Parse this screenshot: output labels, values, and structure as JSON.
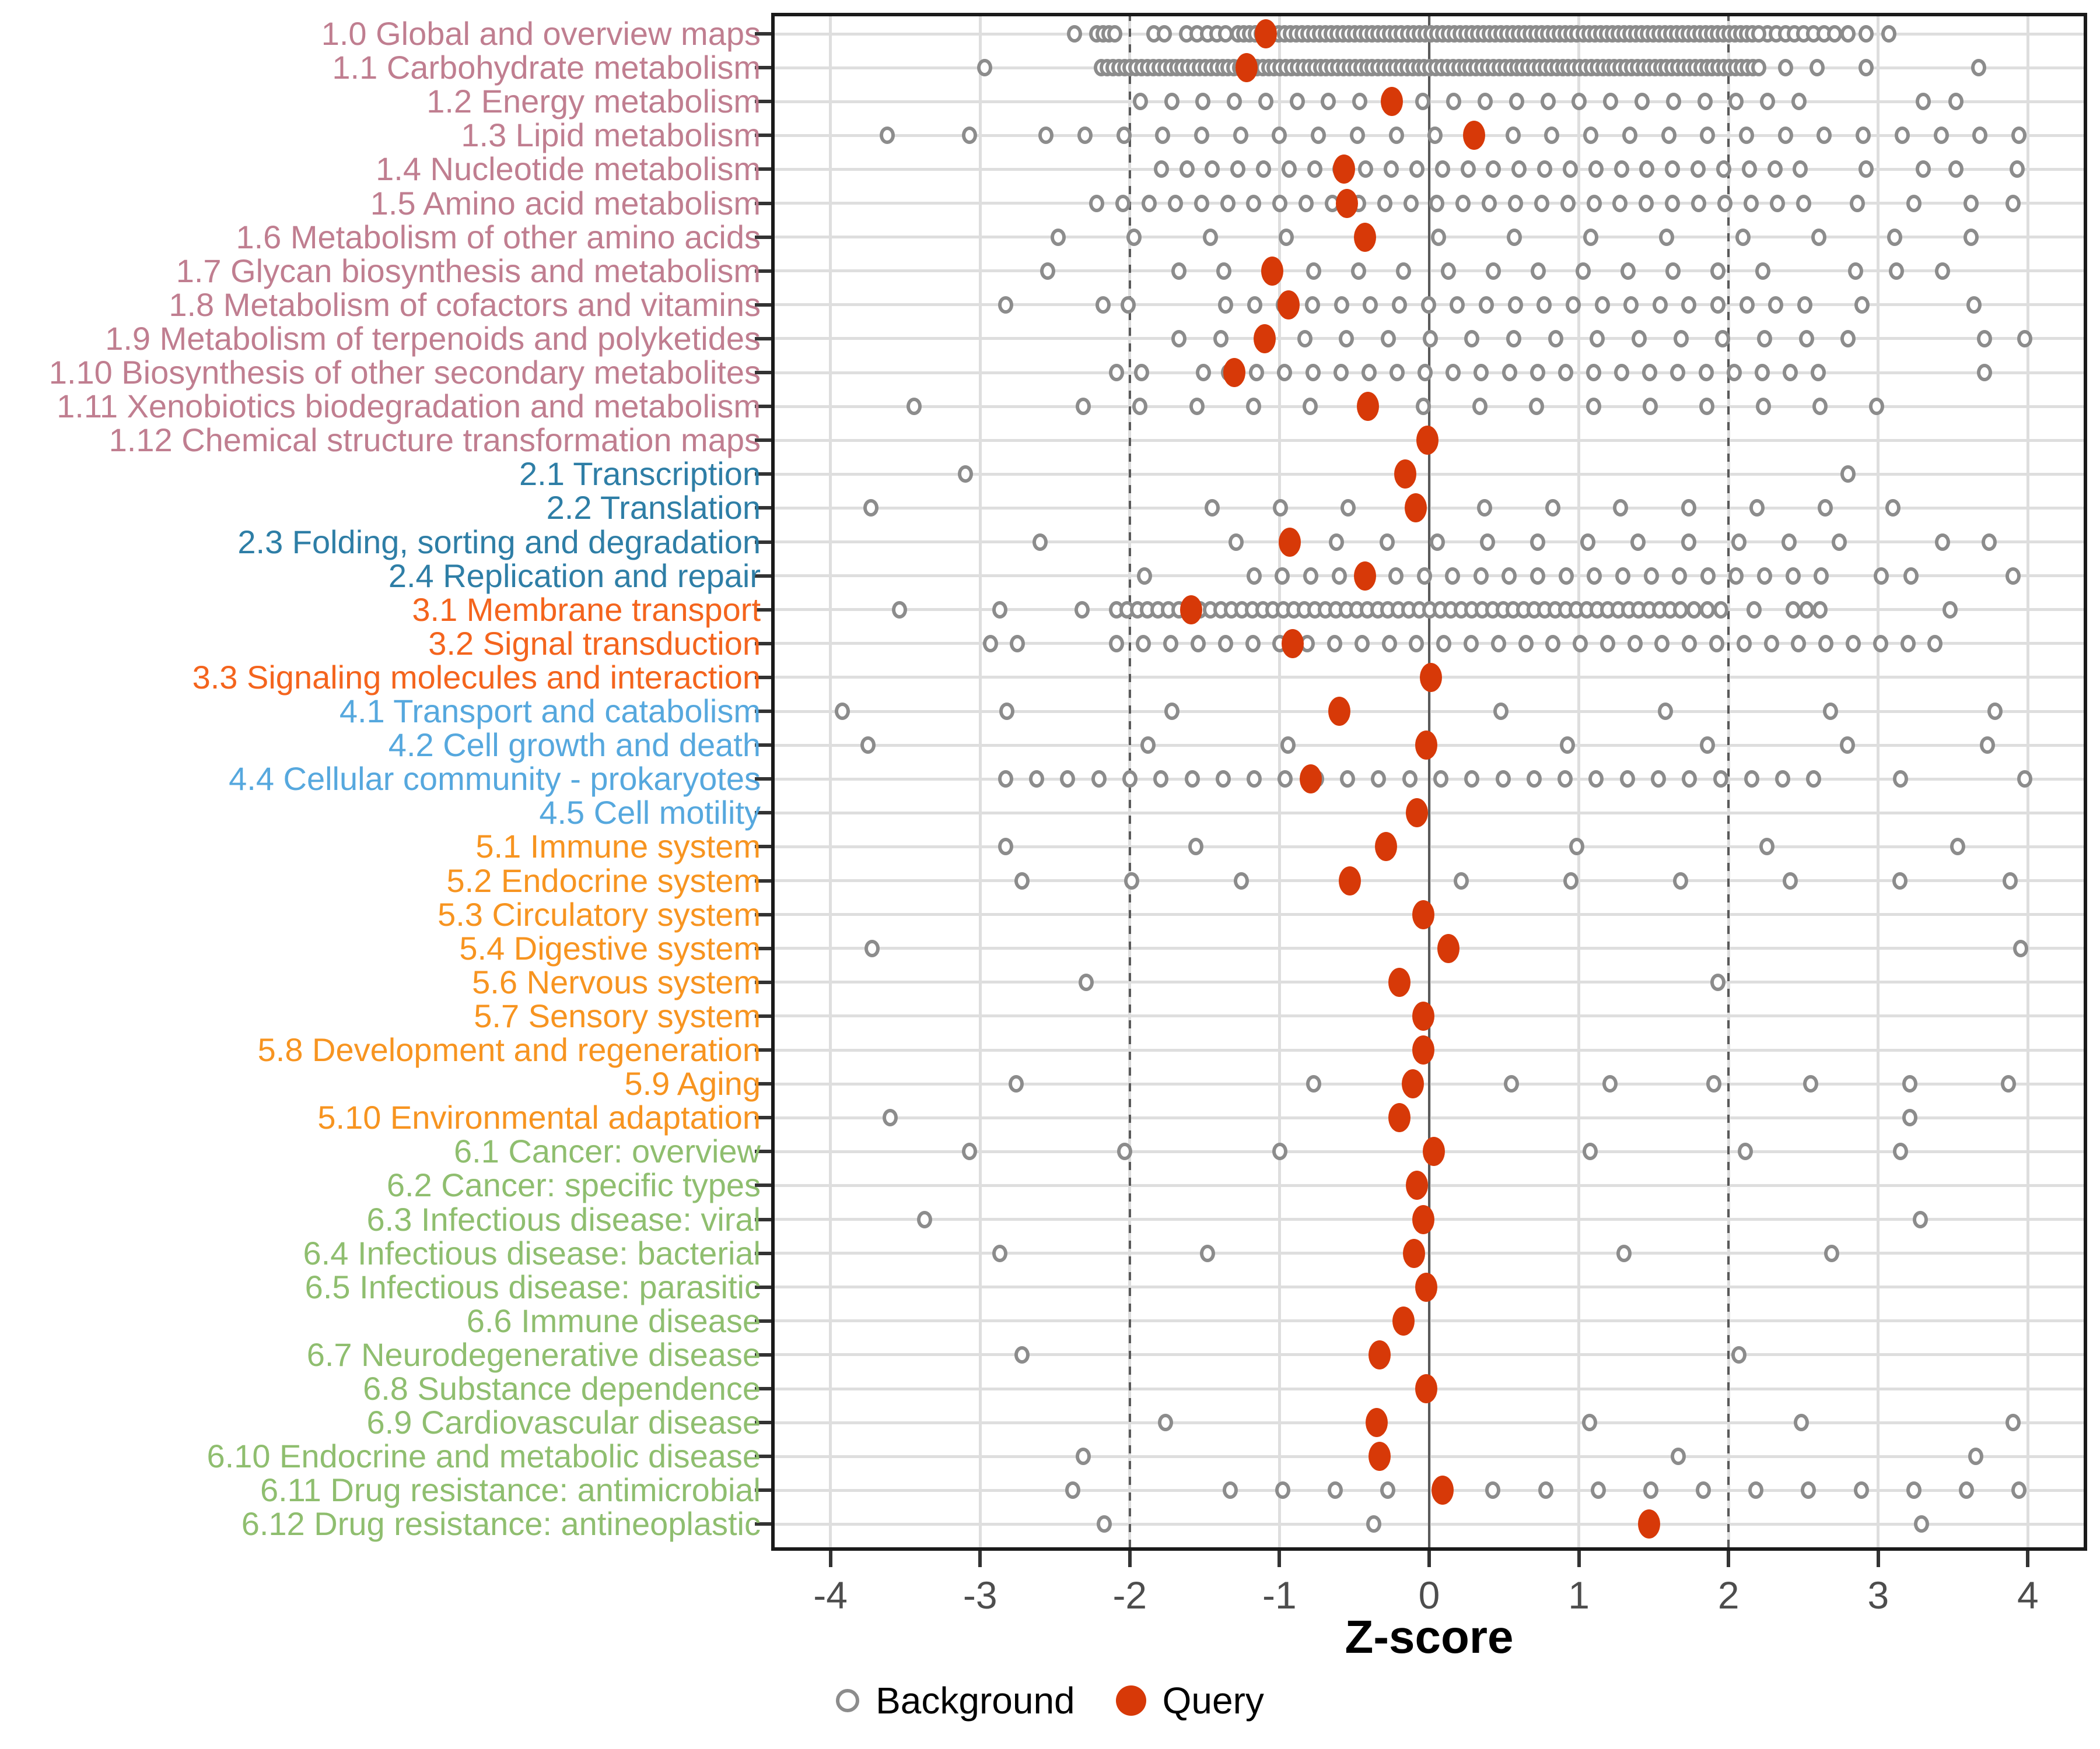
{
  "axis": {
    "xlabel": "Z-score",
    "x_ticks": [
      "-4",
      "-3",
      "-2",
      "-1",
      "0",
      "1",
      "2",
      "3",
      "4"
    ]
  },
  "legend": {
    "background_label": "Background",
    "query_label": "Query"
  },
  "colors": {
    "query": "#d73908",
    "background_stroke": "#8c8c8c",
    "gridline": "#dedede",
    "reference_line": "#5a5a5a",
    "panel_border": "#1a1a1a",
    "tick_label": "#4d4d4d",
    "groups": {
      "1": "#c07e90",
      "2": "#2e7ea6",
      "3": "#f4641d",
      "4": "#56a8de",
      "5": "#f79420",
      "6": "#8fbe6f"
    }
  },
  "chart_data": {
    "type": "scatter",
    "title": "",
    "xlabel": "Z-score",
    "ylabel": "",
    "xlim": [
      -4.42,
      4.4
    ],
    "x_tick_values": [
      -4,
      -3,
      -2,
      -1,
      0,
      1,
      2,
      3,
      4
    ],
    "reference_lines": {
      "solid": [
        0
      ],
      "dotted": [
        -2,
        2
      ]
    },
    "grid": true,
    "legend_position": "bottom",
    "legend_entries": [
      "Background",
      "Query"
    ],
    "series_note": "Each row: query = red filled point z-score; background = open gray circles; uniform = [start,end,count] evenly spaced circles; extra = additional circle z-scores",
    "rows": [
      {
        "label": "1.0 Global and overview maps",
        "group": "1",
        "query": -1.09,
        "uniform": [
          -1.28,
          2.2,
          90
        ],
        "extra": [
          -2.37,
          -2.22,
          -2.18,
          -2.14,
          -2.1,
          -1.84,
          -1.77,
          -1.62,
          -1.55,
          -1.48,
          -1.42,
          -1.36,
          2.26,
          2.32,
          2.38,
          2.44,
          2.5,
          2.57,
          2.64,
          2.71,
          2.8,
          2.92,
          3.07
        ]
      },
      {
        "label": "1.1 Carbohydrate metabolism",
        "group": "1",
        "query": -1.22,
        "uniform": [
          -2.19,
          2.2,
          115
        ],
        "extra": [
          -2.97,
          2.38,
          2.59,
          2.92,
          3.67
        ]
      },
      {
        "label": "1.2 Energy metabolism",
        "group": "1",
        "query": -0.25,
        "uniform": [
          -1.93,
          2.47,
          22
        ],
        "extra": [
          3.3,
          3.52
        ]
      },
      {
        "label": "1.3 Lipid metabolism",
        "group": "1",
        "query": 0.3,
        "uniform": [
          -2.56,
          3.94,
          26
        ],
        "extra": [
          -3.62,
          -3.07
        ]
      },
      {
        "label": "1.4 Nucleotide metabolism",
        "group": "1",
        "query": -0.57,
        "uniform": [
          -1.79,
          2.48,
          26
        ],
        "extra": [
          2.92,
          3.3,
          3.52,
          3.93
        ]
      },
      {
        "label": "1.5 Amino acid metabolism",
        "group": "1",
        "query": -0.55,
        "uniform": [
          -2.22,
          2.5,
          28
        ],
        "extra": [
          2.86,
          3.24,
          3.62,
          3.9
        ]
      },
      {
        "label": "1.6 Metabolism of other amino acids",
        "group": "1",
        "query": -0.43,
        "uniform": [
          -2.48,
          3.62,
          13
        ],
        "extra": []
      },
      {
        "label": "1.7 Glycan biosynthesis and metabolism",
        "group": "1",
        "query": -1.05,
        "uniform": [
          -1.67,
          2.23,
          14
        ],
        "extra": [
          -2.55,
          2.85,
          3.12,
          3.43
        ]
      },
      {
        "label": "1.8 Metabolism of cofactors and vitamins",
        "group": "1",
        "query": -0.94,
        "uniform": [
          -1.36,
          2.51,
          21
        ],
        "extra": [
          -2.83,
          -2.18,
          -2.01,
          2.89,
          3.64
        ]
      },
      {
        "label": "1.9 Metabolism of terpenoids and polyketides",
        "group": "1",
        "query": -1.1,
        "uniform": [
          -1.67,
          2.8,
          17
        ],
        "extra": [
          3.71,
          3.98
        ]
      },
      {
        "label": "1.10 Biosynthesis of other secondary metabolites",
        "group": "1",
        "query": -1.3,
        "uniform": [
          -1.34,
          2.6,
          22
        ],
        "extra": [
          -2.09,
          -1.92,
          -1.51,
          3.71
        ]
      },
      {
        "label": "1.11 Xenobiotics biodegradation and metabolism",
        "group": "1",
        "query": -0.41,
        "uniform": [
          -2.31,
          2.99,
          15
        ],
        "extra": [
          -3.44
        ]
      },
      {
        "label": "1.12 Chemical structure transformation maps",
        "group": "1",
        "query": -0.01,
        "uniform": null,
        "extra": []
      },
      {
        "label": "2.1 Transcription",
        "group": "2",
        "query": -0.16,
        "uniform": null,
        "extra": [
          -3.1,
          2.8
        ]
      },
      {
        "label": "2.2 Translation",
        "group": "2",
        "query": -0.09,
        "uniform": [
          -1.45,
          3.1,
          11
        ],
        "extra": [
          -3.73
        ]
      },
      {
        "label": "2.3 Folding, sorting and degradation",
        "group": "2",
        "query": -0.93,
        "uniform": [
          -1.29,
          2.74,
          13
        ],
        "extra": [
          -2.6,
          3.43,
          3.74
        ]
      },
      {
        "label": "2.4 Replication and repair",
        "group": "2",
        "query": -0.43,
        "uniform": [
          -1.17,
          2.62,
          21
        ],
        "extra": [
          -1.9,
          3.02,
          3.22,
          3.9
        ]
      },
      {
        "label": "3.1 Membrane transport",
        "group": "3",
        "query": -1.59,
        "uniform": [
          -2.09,
          1.68,
          55
        ],
        "extra": [
          -3.54,
          -2.87,
          -2.32,
          1.77,
          1.86,
          1.95,
          2.17,
          2.43,
          2.52,
          2.61,
          3.48
        ]
      },
      {
        "label": "3.2 Signal transduction",
        "group": "3",
        "query": -0.91,
        "uniform": [
          -2.09,
          3.38,
          31
        ],
        "extra": [
          -2.93,
          -2.75
        ]
      },
      {
        "label": "3.3 Signaling molecules and interaction",
        "group": "3",
        "query": 0.01,
        "uniform": null,
        "extra": []
      },
      {
        "label": "4.1 Transport and catabolism",
        "group": "4",
        "query": -0.6,
        "uniform": [
          -3.92,
          3.78,
          8
        ],
        "extra": []
      },
      {
        "label": "4.2 Cell growth and death",
        "group": "4",
        "query": -0.02,
        "uniform": [
          -1.88,
          3.73,
          7
        ],
        "extra": [
          -3.75
        ]
      },
      {
        "label": "4.4 Cellular community - prokaryotes",
        "group": "4",
        "query": -0.79,
        "uniform": [
          -2.83,
          2.57,
          27
        ],
        "extra": [
          3.15,
          3.98
        ]
      },
      {
        "label": "4.5 Cell motility",
        "group": "4",
        "query": -0.08,
        "uniform": null,
        "extra": []
      },
      {
        "label": "5.1 Immune system",
        "group": "5",
        "query": -0.29,
        "uniform": [
          -2.83,
          3.53,
          6
        ],
        "extra": []
      },
      {
        "label": "5.2 Endocrine system",
        "group": "5",
        "query": -0.53,
        "uniform": [
          -2.72,
          3.88,
          10
        ],
        "extra": []
      },
      {
        "label": "5.3 Circulatory system",
        "group": "5",
        "query": -0.04,
        "uniform": null,
        "extra": []
      },
      {
        "label": "5.4 Digestive system",
        "group": "5",
        "query": 0.13,
        "uniform": null,
        "extra": [
          -3.72,
          3.95
        ]
      },
      {
        "label": "5.6 Nervous system",
        "group": "5",
        "query": -0.2,
        "uniform": null,
        "extra": [
          -2.29,
          1.93
        ]
      },
      {
        "label": "5.7 Sensory system",
        "group": "5",
        "query": -0.04,
        "uniform": null,
        "extra": []
      },
      {
        "label": "5.8 Development and regeneration",
        "group": "5",
        "query": -0.04,
        "uniform": null,
        "extra": []
      },
      {
        "label": "5.9 Aging",
        "group": "5",
        "query": -0.11,
        "uniform": null,
        "extra": [
          -2.76,
          -0.77,
          0.55,
          1.21,
          1.9,
          2.55,
          3.21,
          3.87
        ]
      },
      {
        "label": "5.10 Environmental adaptation",
        "group": "5",
        "query": -0.2,
        "uniform": null,
        "extra": [
          -3.6,
          3.21
        ]
      },
      {
        "label": "6.1 Cancer: overview",
        "group": "6",
        "query": 0.03,
        "uniform": [
          -3.07,
          3.15,
          7
        ],
        "extra": []
      },
      {
        "label": "6.2 Cancer: specific types",
        "group": "6",
        "query": -0.08,
        "uniform": null,
        "extra": []
      },
      {
        "label": "6.3 Infectious disease: viral",
        "group": "6",
        "query": -0.04,
        "uniform": null,
        "extra": [
          -3.37,
          3.28
        ]
      },
      {
        "label": "6.4 Infectious disease: bacterial",
        "group": "6",
        "query": -0.1,
        "uniform": [
          -2.87,
          2.69,
          5
        ],
        "extra": []
      },
      {
        "label": "6.5 Infectious disease: parasitic",
        "group": "6",
        "query": -0.02,
        "uniform": null,
        "extra": []
      },
      {
        "label": "6.6 Immune disease",
        "group": "6",
        "query": -0.17,
        "uniform": null,
        "extra": []
      },
      {
        "label": "6.7 Neurodegenerative disease",
        "group": "6",
        "query": -0.33,
        "uniform": null,
        "extra": [
          -2.72,
          2.07
        ]
      },
      {
        "label": "6.8 Substance dependence",
        "group": "6",
        "query": -0.02,
        "uniform": null,
        "extra": []
      },
      {
        "label": "6.9 Cardiovascular disease",
        "group": "6",
        "query": -0.35,
        "uniform": [
          -1.76,
          3.9,
          5
        ],
        "extra": []
      },
      {
        "label": "6.10 Endocrine and metabolic disease",
        "group": "6",
        "query": -0.33,
        "uniform": [
          -2.31,
          3.65,
          4
        ],
        "extra": []
      },
      {
        "label": "6.11 Drug resistance: antimicrobial",
        "group": "6",
        "query": 0.09,
        "uniform": [
          -1.33,
          3.94,
          16
        ],
        "extra": [
          -2.38
        ]
      },
      {
        "label": "6.12 Drug resistance: antineoplastic",
        "group": "6",
        "query": 1.47,
        "uniform": null,
        "extra": [
          -2.17,
          -0.37,
          3.29
        ]
      }
    ]
  }
}
